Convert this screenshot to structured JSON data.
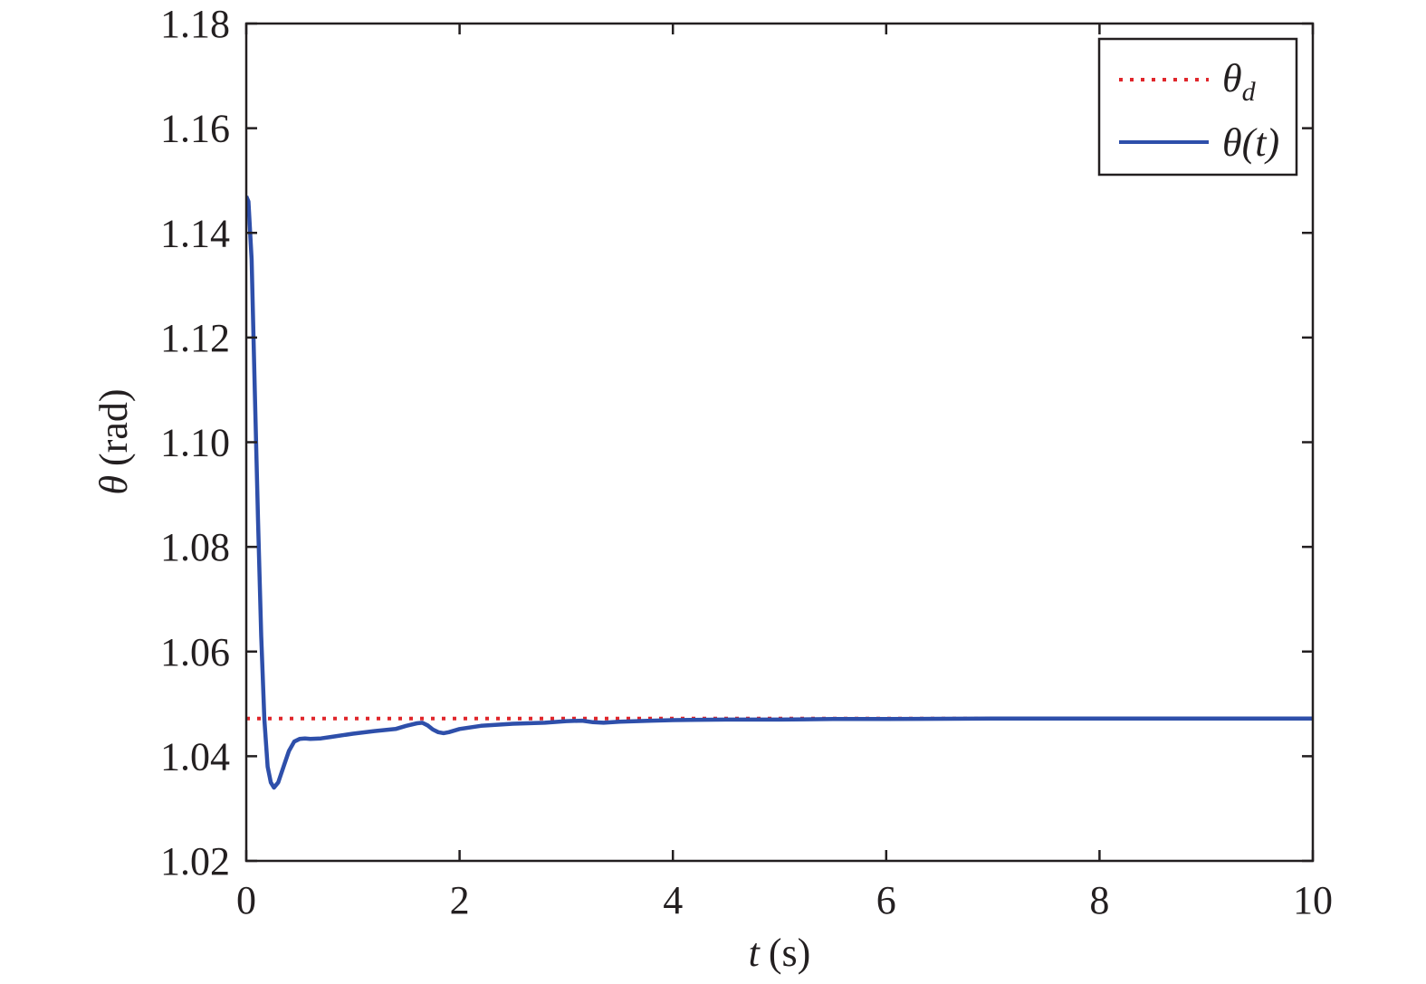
{
  "chart_data": {
    "type": "line",
    "xlabel": {
      "symbol": "t",
      "unit": "(s)"
    },
    "ylabel": {
      "symbol": "θ",
      "unit": "(rad)"
    },
    "xlim": [
      0,
      10
    ],
    "ylim": [
      1.02,
      1.18
    ],
    "xticks": [
      "0",
      "2",
      "4",
      "6",
      "8",
      "10"
    ],
    "yticks": [
      "1.02",
      "1.04",
      "1.06",
      "1.08",
      "1.10",
      "1.12",
      "1.14",
      "1.16",
      "1.18"
    ],
    "grid": false,
    "legend_position": "top-right",
    "series": [
      {
        "legend_main": "θ",
        "legend_sub": "d",
        "legend_paren": "",
        "color": "#e0262b",
        "style": "dotted",
        "x": [
          0,
          10
        ],
        "y": [
          1.0472,
          1.0472
        ]
      },
      {
        "legend_main": "θ",
        "legend_sub": "",
        "legend_paren": "(t)",
        "color": "#2e4faa",
        "style": "solid",
        "x": [
          0,
          0.02,
          0.05,
          0.08,
          0.11,
          0.14,
          0.17,
          0.2,
          0.23,
          0.26,
          0.3,
          0.35,
          0.4,
          0.45,
          0.5,
          0.55,
          0.6,
          0.7,
          0.8,
          1.0,
          1.2,
          1.4,
          1.5,
          1.6,
          1.65,
          1.7,
          1.75,
          1.8,
          1.85,
          1.9,
          2.0,
          2.2,
          2.5,
          2.8,
          3.0,
          3.15,
          3.25,
          3.35,
          3.5,
          3.8,
          4.0,
          4.5,
          5.0,
          5.5,
          6.0,
          7.0,
          8.0,
          9.0,
          10.0
        ],
        "y": [
          1.147,
          1.146,
          1.135,
          1.11,
          1.085,
          1.063,
          1.047,
          1.038,
          1.035,
          1.034,
          1.035,
          1.038,
          1.041,
          1.0428,
          1.0433,
          1.0434,
          1.0433,
          1.0434,
          1.0437,
          1.0443,
          1.0448,
          1.0452,
          1.0458,
          1.0463,
          1.0464,
          1.0459,
          1.0451,
          1.0446,
          1.0444,
          1.0446,
          1.0452,
          1.0458,
          1.0462,
          1.0464,
          1.0467,
          1.0468,
          1.0465,
          1.0464,
          1.0466,
          1.0468,
          1.0469,
          1.047,
          1.047,
          1.0471,
          1.0471,
          1.0472,
          1.0472,
          1.0472,
          1.0472
        ]
      }
    ]
  }
}
